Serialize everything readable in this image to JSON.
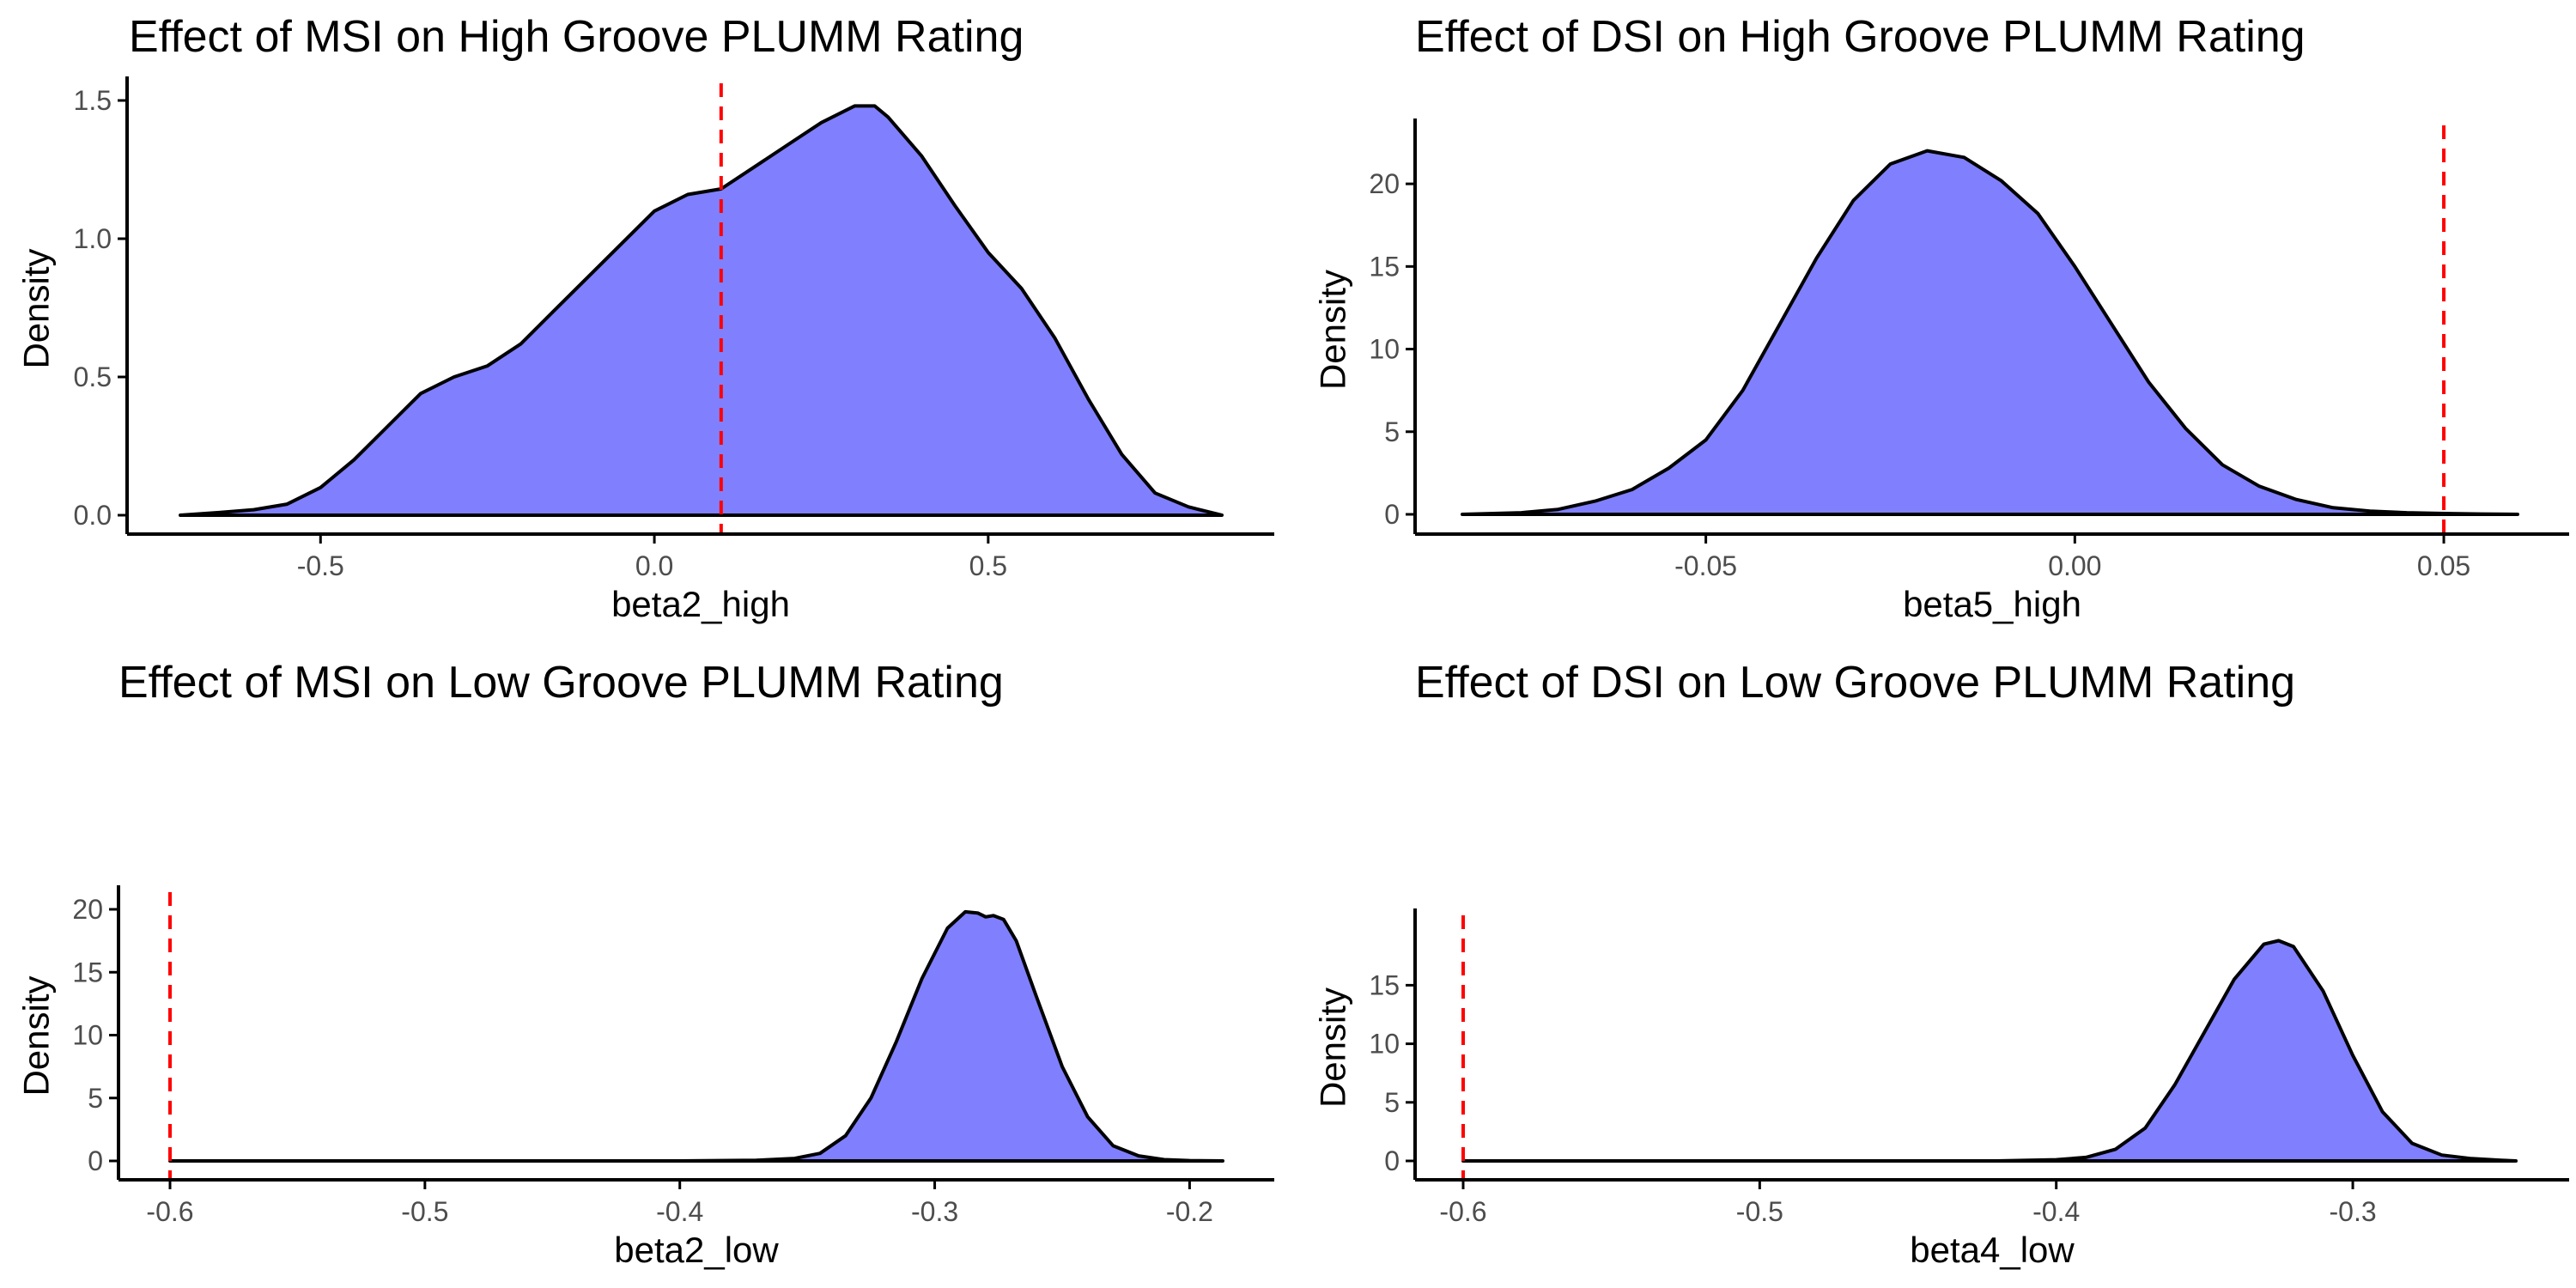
{
  "colors": {
    "fill": "#8080ff",
    "outline": "#000000",
    "reference": "#ff0000",
    "tick_text": "#4d4d4d"
  },
  "chart_data": [
    {
      "type": "area",
      "title": "Effect of MSI on High Groove PLUMM Rating",
      "xlabel": "beta2_high",
      "ylabel": "Density",
      "xlim": [
        -0.71,
        0.85
      ],
      "ylim": [
        0,
        1.5
      ],
      "xticks": [
        -0.5,
        0.0,
        0.5
      ],
      "xtick_labels": [
        "-0.5",
        "0.0",
        "0.5"
      ],
      "yticks": [
        0,
        0.5,
        1.0,
        1.5
      ],
      "ytick_labels": [
        "0.0",
        "0.5",
        "1.0",
        "1.5"
      ],
      "reference_x": 0.1,
      "x": [
        -0.71,
        -0.65,
        -0.6,
        -0.55,
        -0.5,
        -0.45,
        -0.4,
        -0.35,
        -0.3,
        -0.25,
        -0.2,
        -0.15,
        -0.1,
        -0.05,
        0.0,
        0.05,
        0.1,
        0.15,
        0.2,
        0.25,
        0.3,
        0.33,
        0.35,
        0.4,
        0.45,
        0.5,
        0.55,
        0.6,
        0.65,
        0.7,
        0.75,
        0.8,
        0.85
      ],
      "y": [
        0.0,
        0.01,
        0.02,
        0.04,
        0.1,
        0.2,
        0.32,
        0.44,
        0.5,
        0.54,
        0.62,
        0.74,
        0.86,
        0.98,
        1.1,
        1.16,
        1.18,
        1.26,
        1.34,
        1.42,
        1.48,
        1.48,
        1.44,
        1.3,
        1.12,
        0.95,
        0.82,
        0.64,
        0.42,
        0.22,
        0.08,
        0.03,
        0.0
      ]
    },
    {
      "type": "area",
      "title": "Effect of DSI on High Groove PLUMM Rating",
      "xlabel": "beta5_high",
      "ylabel": "Density",
      "xlim": [
        -0.083,
        0.06
      ],
      "ylim": [
        0,
        22.5
      ],
      "xticks": [
        -0.05,
        0.0,
        0.05
      ],
      "xtick_labels": [
        "-0.05",
        "0.00",
        "0.05"
      ],
      "yticks": [
        0,
        5,
        10,
        15,
        20
      ],
      "ytick_labels": [
        "0",
        "5",
        "10",
        "15",
        "20"
      ],
      "reference_x": 0.05,
      "x": [
        -0.083,
        -0.075,
        -0.07,
        -0.065,
        -0.06,
        -0.055,
        -0.05,
        -0.045,
        -0.04,
        -0.035,
        -0.03,
        -0.025,
        -0.02,
        -0.015,
        -0.01,
        -0.005,
        0.0,
        0.005,
        0.01,
        0.015,
        0.02,
        0.025,
        0.03,
        0.035,
        0.04,
        0.045,
        0.05,
        0.055,
        0.06
      ],
      "y": [
        0.0,
        0.1,
        0.3,
        0.8,
        1.5,
        2.8,
        4.5,
        7.5,
        11.5,
        15.5,
        19.0,
        21.2,
        22.0,
        21.6,
        20.2,
        18.2,
        15.0,
        11.5,
        8.0,
        5.2,
        3.0,
        1.7,
        0.9,
        0.4,
        0.2,
        0.1,
        0.05,
        0.02,
        0.0
      ]
    },
    {
      "type": "area",
      "title": "Effect of MSI on Low Groove PLUMM Rating",
      "xlabel": "beta2_low",
      "ylabel": "Density",
      "xlim": [
        -0.6,
        -0.187
      ],
      "ylim": [
        0,
        20
      ],
      "xticks": [
        -0.6,
        -0.5,
        -0.4,
        -0.3,
        -0.2
      ],
      "xtick_labels": [
        "-0.6",
        "-0.5",
        "-0.4",
        "-0.3",
        "-0.2"
      ],
      "yticks": [
        0,
        5,
        10,
        15,
        20
      ],
      "ytick_labels": [
        "0",
        "5",
        "10",
        "15",
        "20"
      ],
      "reference_x": -0.6,
      "x": [
        -0.6,
        -0.4,
        -0.37,
        -0.355,
        -0.345,
        -0.335,
        -0.325,
        -0.315,
        -0.305,
        -0.295,
        -0.288,
        -0.283,
        -0.28,
        -0.277,
        -0.273,
        -0.268,
        -0.26,
        -0.25,
        -0.24,
        -0.23,
        -0.22,
        -0.21,
        -0.2,
        -0.187
      ],
      "y": [
        0.0,
        0.0,
        0.05,
        0.2,
        0.6,
        2.0,
        5.0,
        9.5,
        14.5,
        18.5,
        19.8,
        19.7,
        19.4,
        19.5,
        19.2,
        17.5,
        13.0,
        7.5,
        3.5,
        1.2,
        0.4,
        0.1,
        0.03,
        0.0
      ]
    },
    {
      "type": "area",
      "title": "Effect of DSI on Low Groove PLUMM Rating",
      "xlabel": "beta4_low",
      "ylabel": "Density",
      "xlim": [
        -0.6,
        -0.245
      ],
      "ylim": [
        0,
        19.5
      ],
      "xticks": [
        -0.6,
        -0.5,
        -0.4,
        -0.3
      ],
      "xtick_labels": [
        "-0.6",
        "-0.5",
        "-0.4",
        "-0.3"
      ],
      "yticks": [
        0,
        5,
        10,
        15
      ],
      "ytick_labels": [
        "0",
        "5",
        "10",
        "15"
      ],
      "reference_x": -0.6,
      "x": [
        -0.6,
        -0.42,
        -0.4,
        -0.39,
        -0.38,
        -0.37,
        -0.36,
        -0.35,
        -0.34,
        -0.33,
        -0.325,
        -0.32,
        -0.31,
        -0.3,
        -0.29,
        -0.28,
        -0.27,
        -0.26,
        -0.25,
        -0.245
      ],
      "y": [
        0.0,
        0.0,
        0.1,
        0.3,
        1.0,
        2.8,
        6.5,
        11.0,
        15.5,
        18.5,
        18.8,
        18.3,
        14.5,
        9.0,
        4.2,
        1.5,
        0.5,
        0.2,
        0.05,
        0.0
      ]
    }
  ]
}
